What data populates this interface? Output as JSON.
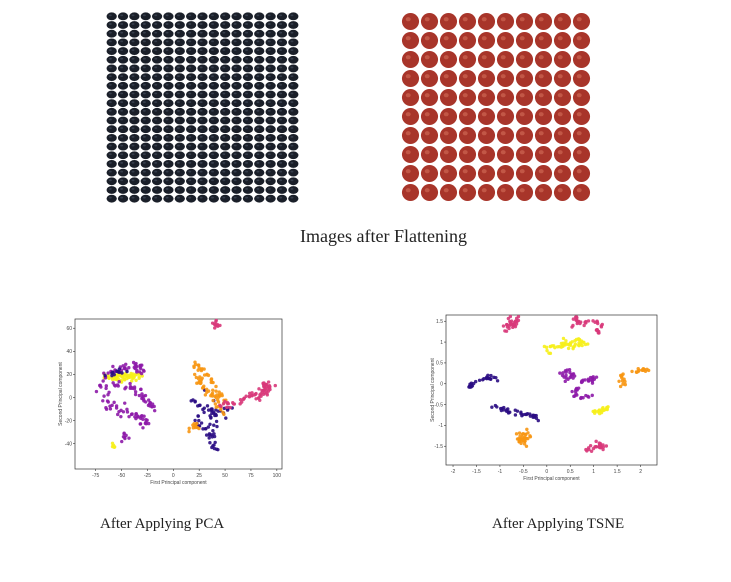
{
  "captions": {
    "flatten": "Images after Flattening",
    "pca": "After Applying PCA",
    "tsne": "After Applying TSNE"
  },
  "image_grids": {
    "dark": {
      "rows": 22,
      "cols": 17,
      "color": "#1a1f29",
      "highlight": "#4a5466"
    },
    "apple": {
      "rows": 10,
      "cols": 10,
      "color": "#a8352a",
      "highlight": "#d7735c"
    }
  },
  "colors": [
    "#f6ef1a",
    "#f79612",
    "#2a0c83",
    "#8d1aa8",
    "#d8387a"
  ],
  "chart_data": [
    {
      "type": "scatter",
      "title": "",
      "xlabel": "First Principal component",
      "ylabel": "Second Principal component",
      "xlim": [
        -95,
        105
      ],
      "ylim": [
        -62,
        68
      ],
      "xticks": [
        -75,
        -50,
        -25,
        0,
        25,
        50,
        75,
        100
      ],
      "yticks": [
        -40,
        -20,
        0,
        20,
        40,
        60
      ],
      "clusters": [
        {
          "color": "#f6ef1a",
          "shape": "blob",
          "cx": -47,
          "cy": 18,
          "rx": 16,
          "ry": 3,
          "n": 70
        },
        {
          "color": "#f6ef1a",
          "shape": "blob",
          "cx": -58,
          "cy": -42,
          "rx": 2,
          "ry": 1.5,
          "n": 5
        },
        {
          "color": "#8d1aa8",
          "shape": "curve",
          "points": [
            [
              -70,
              18
            ],
            [
              -55,
              25
            ],
            [
              -38,
              27
            ],
            [
              -28,
              22
            ]
          ],
          "spread": 2,
          "n": 40
        },
        {
          "color": "#8d1aa8",
          "shape": "curve",
          "points": [
            [
              -72,
              10
            ],
            [
              -52,
              12
            ],
            [
              -38,
              8
            ],
            [
              -28,
              0
            ],
            [
              -18,
              -10
            ]
          ],
          "spread": 2,
          "n": 45
        },
        {
          "color": "#8d1aa8",
          "shape": "curve",
          "points": [
            [
              -65,
              0
            ],
            [
              -58,
              -10
            ],
            [
              -45,
              -15
            ],
            [
              -32,
              -18
            ],
            [
              -25,
              -22
            ]
          ],
          "spread": 2.5,
          "n": 45
        },
        {
          "color": "#8d1aa8",
          "shape": "blob",
          "cx": -46,
          "cy": -33,
          "rx": 3,
          "ry": 3,
          "n": 8
        },
        {
          "color": "#2a0c83",
          "shape": "curve",
          "points": [
            [
              -66,
              18
            ],
            [
              -55,
              22
            ],
            [
              -44,
              22
            ]
          ],
          "spread": 1.5,
          "n": 12
        },
        {
          "color": "#2a0c83",
          "shape": "curve",
          "points": [
            [
              18,
              -2
            ],
            [
              30,
              -10
            ],
            [
              45,
              -15
            ],
            [
              55,
              -10
            ]
          ],
          "spread": 2,
          "n": 30
        },
        {
          "color": "#2a0c83",
          "shape": "curve",
          "points": [
            [
              28,
              5
            ],
            [
              38,
              -5
            ],
            [
              40,
              -20
            ],
            [
              35,
              -35
            ],
            [
              42,
              -45
            ]
          ],
          "spread": 2,
          "n": 30
        },
        {
          "color": "#2a0c83",
          "shape": "curve",
          "points": [
            [
              25,
              -15
            ],
            [
              22,
              -22
            ],
            [
              30,
              -28
            ]
          ],
          "spread": 1.5,
          "n": 12
        },
        {
          "color": "#f79612",
          "shape": "curve",
          "points": [
            [
              18,
              26
            ],
            [
              25,
              15
            ],
            [
              32,
              5
            ],
            [
              42,
              -2
            ],
            [
              48,
              -15
            ]
          ],
          "spread": 2,
          "n": 40
        },
        {
          "color": "#f79612",
          "shape": "curve",
          "points": [
            [
              22,
              28
            ],
            [
              32,
              20
            ],
            [
              40,
              8
            ],
            [
              50,
              -5
            ]
          ],
          "spread": 1.5,
          "n": 30
        },
        {
          "color": "#f79612",
          "shape": "blob",
          "cx": 22,
          "cy": -25,
          "rx": 5,
          "ry": 3,
          "n": 12
        },
        {
          "color": "#d8387a",
          "shape": "curve",
          "points": [
            [
              45,
              -8
            ],
            [
              60,
              -4
            ],
            [
              75,
              0
            ],
            [
              88,
              4
            ],
            [
              95,
              10
            ]
          ],
          "spread": 2,
          "n": 50
        },
        {
          "color": "#d8387a",
          "shape": "blob",
          "cx": 90,
          "cy": 10,
          "rx": 3,
          "ry": 5,
          "n": 15
        },
        {
          "color": "#d8387a",
          "shape": "blob",
          "cx": 41,
          "cy": 63,
          "rx": 3,
          "ry": 2,
          "n": 12
        }
      ]
    },
    {
      "type": "scatter",
      "title": "",
      "xlabel": "First Principal component",
      "ylabel": "Second Principal component",
      "xlim": [
        -2.15,
        2.35
      ],
      "ylim": [
        -1.95,
        1.65
      ],
      "xticks": [
        -2.0,
        -1.5,
        -1.0,
        -0.5,
        0.0,
        0.5,
        1.0,
        1.5,
        2.0
      ],
      "yticks": [
        1.5,
        1.0,
        0.5,
        0.0,
        -0.5,
        -1.0,
        -1.5
      ],
      "clusters": [
        {
          "color": "#d8387a",
          "shape": "curve",
          "points": [
            [
              -0.9,
              1.3
            ],
            [
              -0.75,
              1.55
            ],
            [
              -0.6,
              1.5
            ],
            [
              -0.75,
              1.35
            ],
            [
              -0.9,
              1.3
            ]
          ],
          "spread": 0.04,
          "n": 30
        },
        {
          "color": "#d8387a",
          "shape": "curve",
          "points": [
            [
              0.6,
              1.3
            ],
            [
              0.6,
              1.55
            ],
            [
              0.75,
              1.45
            ],
            [
              0.9,
              1.5
            ]
          ],
          "spread": 0.03,
          "n": 20
        },
        {
          "color": "#d8387a",
          "shape": "curve",
          "points": [
            [
              1.0,
              1.55
            ],
            [
              1.15,
              1.4
            ],
            [
              1.1,
              1.2
            ]
          ],
          "spread": 0.03,
          "n": 15
        },
        {
          "color": "#d8387a",
          "shape": "curve",
          "points": [
            [
              0.8,
              -1.65
            ],
            [
              1.0,
              -1.55
            ],
            [
              1.15,
              -1.45
            ],
            [
              1.2,
              -1.5
            ]
          ],
          "spread": 0.05,
          "n": 25
        },
        {
          "color": "#f6ef1a",
          "shape": "curve",
          "points": [
            [
              0.0,
              0.85
            ],
            [
              0.3,
              0.95
            ],
            [
              0.6,
              0.95
            ],
            [
              0.85,
              1.0
            ]
          ],
          "spread": 0.06,
          "n": 50
        },
        {
          "color": "#f6ef1a",
          "shape": "curve",
          "points": [
            [
              0.95,
              -0.7
            ],
            [
              1.15,
              -0.65
            ],
            [
              1.35,
              -0.55
            ]
          ],
          "spread": 0.03,
          "n": 20
        },
        {
          "color": "#2a0c83",
          "shape": "curve",
          "points": [
            [
              -1.65,
              -0.1
            ],
            [
              -1.5,
              0.1
            ],
            [
              -1.3,
              0.15
            ],
            [
              -1.05,
              0.1
            ]
          ],
          "spread": 0.03,
          "n": 25
        },
        {
          "color": "#2a0c83",
          "shape": "curve",
          "points": [
            [
              -1.2,
              -0.55
            ],
            [
              -0.8,
              -0.65
            ],
            [
              -0.4,
              -0.75
            ],
            [
              -0.15,
              -0.85
            ]
          ],
          "spread": 0.03,
          "n": 35
        },
        {
          "color": "#8d1aa8",
          "shape": "curve",
          "points": [
            [
              0.3,
              0.2
            ],
            [
              0.45,
              0.1
            ],
            [
              0.55,
              0.2
            ],
            [
              0.45,
              0.3
            ],
            [
              0.3,
              0.25
            ]
          ],
          "spread": 0.03,
          "n": 20
        },
        {
          "color": "#8d1aa8",
          "shape": "curve",
          "points": [
            [
              0.7,
              0.0
            ],
            [
              0.85,
              0.15
            ],
            [
              0.95,
              0.0
            ],
            [
              1.0,
              0.2
            ]
          ],
          "spread": 0.03,
          "n": 18
        },
        {
          "color": "#8d1aa8",
          "shape": "curve",
          "points": [
            [
              0.65,
              -0.1
            ],
            [
              0.55,
              -0.2
            ],
            [
              0.7,
              -0.35
            ],
            [
              0.9,
              -0.3
            ]
          ],
          "spread": 0.03,
          "n": 18
        },
        {
          "color": "#f79612",
          "shape": "blob",
          "cx": -0.5,
          "cy": -1.3,
          "rx": 0.15,
          "ry": 0.15,
          "n": 35
        },
        {
          "color": "#f79612",
          "shape": "curve",
          "points": [
            [
              1.55,
              0.25
            ],
            [
              1.65,
              0.1
            ],
            [
              1.6,
              -0.05
            ]
          ],
          "spread": 0.03,
          "n": 12
        },
        {
          "color": "#f79612",
          "shape": "curve",
          "points": [
            [
              1.8,
              0.25
            ],
            [
              2.0,
              0.35
            ],
            [
              2.15,
              0.3
            ]
          ],
          "spread": 0.03,
          "n": 15
        }
      ]
    }
  ]
}
